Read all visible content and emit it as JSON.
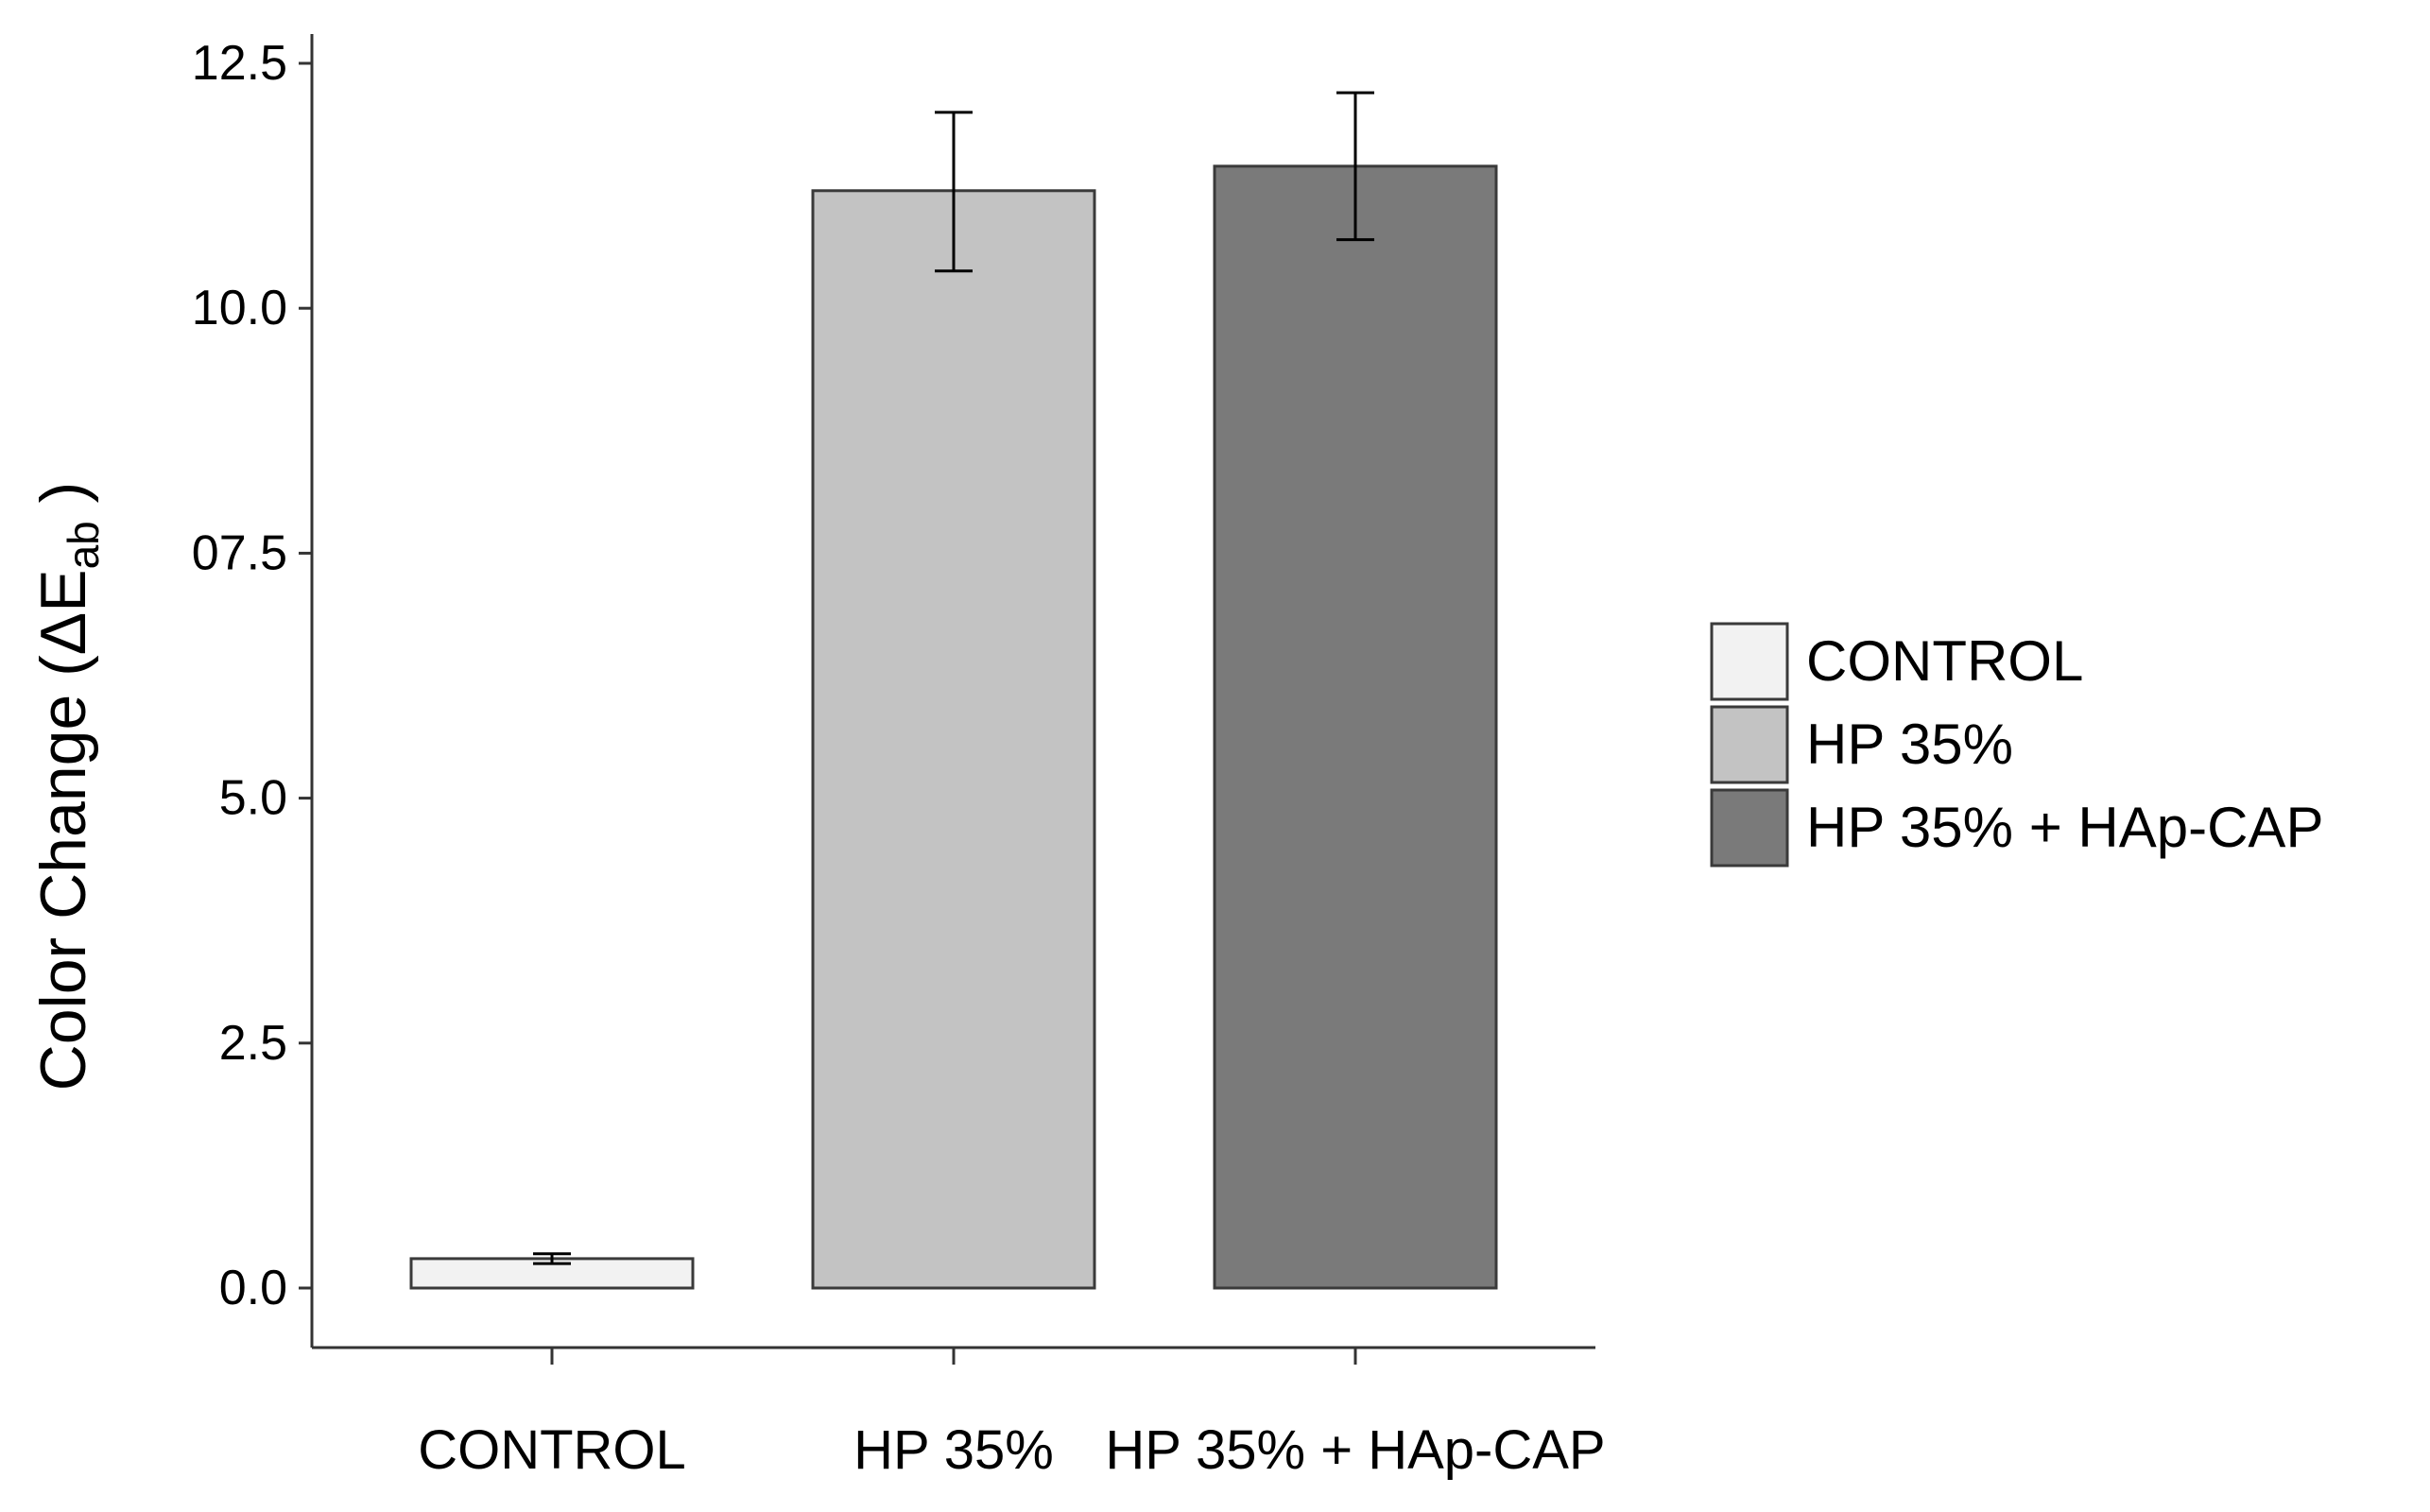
{
  "chart_data": {
    "type": "bar",
    "categories": [
      "CONTROL",
      "HP 35%",
      "HP 35% + HAp-CAP"
    ],
    "values": [
      0.3,
      11.2,
      11.45
    ],
    "errors": [
      [
        0.25,
        0.35
      ],
      [
        10.38,
        12.0
      ],
      [
        10.7,
        12.2
      ]
    ],
    "colors": [
      "#f2f2f2",
      "#c3c3c3",
      "#7a7a7a"
    ],
    "ylim": [
      0,
      12.5
    ],
    "yticks": [
      0.0,
      2.5,
      5.0,
      7.5,
      10.0,
      12.5
    ],
    "ytick_labels": [
      "0.0",
      "2.5",
      "5.0",
      "07.5",
      "10.0",
      "12.5"
    ],
    "xlabel": "",
    "ylabel": {
      "prefix": "Color Change (",
      "symbol": "ΔE",
      "subscript": "ab",
      "suffix": " )"
    },
    "legend": {
      "position": "right",
      "entries": [
        "CONTROL",
        "HP 35%",
        "HP 35% + HAp-CAP"
      ]
    },
    "grid": false
  }
}
